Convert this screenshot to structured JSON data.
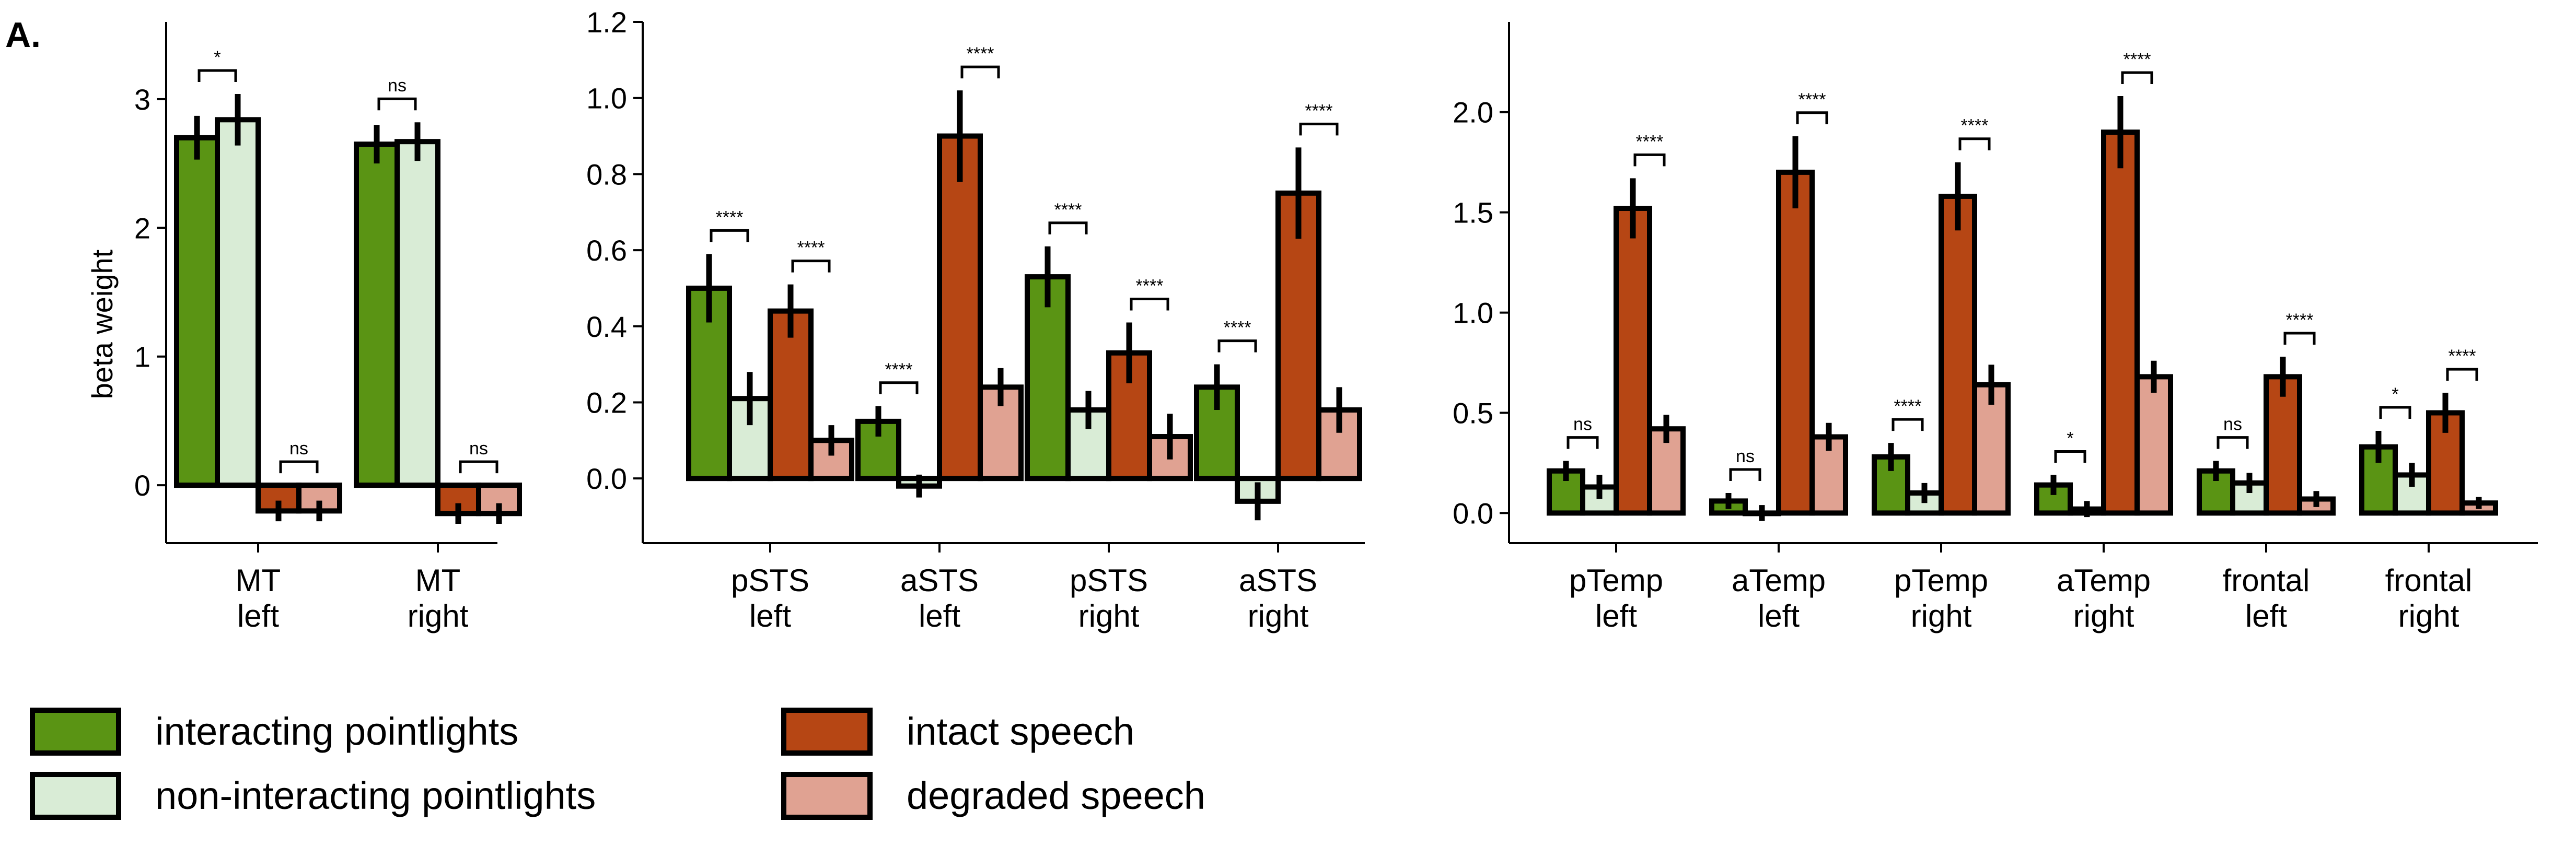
{
  "figure": {
    "panel_label": "A.",
    "colors": {
      "interacting pointlights": "#5a9414",
      "non-interacting pointlights": "#d9ecd6",
      "intact speech": "#b64614",
      "degraded speech": "#e0a292"
    }
  },
  "legend": [
    {
      "label": "interacting pointlights",
      "color": "#5a9414"
    },
    {
      "label": "non-interacting pointlights",
      "color": "#d9ecd6"
    },
    {
      "label": "intact speech",
      "color": "#b64614"
    },
    {
      "label": "degraded speech",
      "color": "#e0a292"
    }
  ],
  "chart_data": [
    {
      "type": "bar",
      "ylabel": "beta weight",
      "ylim": [
        -0.45,
        3.6
      ],
      "yticks": [
        0,
        1,
        2,
        3
      ],
      "ytick_labels": [
        "0",
        "1",
        "2",
        "3"
      ],
      "legend_position": "bottom",
      "groups": [
        {
          "label": [
            "MT",
            "left"
          ],
          "values": [
            2.7,
            2.84,
            -0.2,
            -0.2
          ],
          "errors": [
            0.17,
            0.2,
            0.08,
            0.08
          ],
          "sig": [
            {
              "bars": [
                0,
                1
              ],
              "label": "*"
            },
            {
              "bars": [
                2,
                3
              ],
              "label": "ns"
            }
          ]
        },
        {
          "label": [
            "MT",
            "right"
          ],
          "values": [
            2.65,
            2.67,
            -0.22,
            -0.22
          ],
          "errors": [
            0.15,
            0.15,
            0.08,
            0.08
          ],
          "sig": [
            {
              "bars": [
                0,
                1
              ],
              "label": "ns"
            },
            {
              "bars": [
                2,
                3
              ],
              "label": "ns"
            }
          ]
        }
      ]
    },
    {
      "type": "bar",
      "ylabel": "",
      "ylim": [
        -0.17,
        1.2
      ],
      "yticks": [
        0,
        0.2,
        0.4,
        0.6,
        0.8,
        1.0,
        1.2
      ],
      "ytick_labels": [
        "0.0",
        "0.2",
        "0.4",
        "0.6",
        "0.8",
        "1.0",
        "1.2"
      ],
      "groups": [
        {
          "label": [
            "pSTS",
            "left"
          ],
          "values": [
            0.5,
            0.21,
            0.44,
            0.1
          ],
          "errors": [
            0.09,
            0.07,
            0.07,
            0.04
          ],
          "sig": [
            {
              "bars": [
                0,
                1
              ],
              "label": "****"
            },
            {
              "bars": [
                2,
                3
              ],
              "label": "****"
            }
          ]
        },
        {
          "label": [
            "aSTS",
            "left"
          ],
          "values": [
            0.15,
            -0.02,
            0.9,
            0.24
          ],
          "errors": [
            0.04,
            0.03,
            0.12,
            0.05
          ],
          "sig": [
            {
              "bars": [
                0,
                1
              ],
              "label": "****"
            },
            {
              "bars": [
                2,
                3
              ],
              "label": "****"
            }
          ]
        },
        {
          "label": [
            "pSTS",
            "right"
          ],
          "values": [
            0.53,
            0.18,
            0.33,
            0.11
          ],
          "errors": [
            0.08,
            0.05,
            0.08,
            0.06
          ],
          "sig": [
            {
              "bars": [
                0,
                1
              ],
              "label": "****"
            },
            {
              "bars": [
                2,
                3
              ],
              "label": "****"
            }
          ]
        },
        {
          "label": [
            "aSTS",
            "right"
          ],
          "values": [
            0.24,
            -0.06,
            0.75,
            0.18
          ],
          "errors": [
            0.06,
            0.05,
            0.12,
            0.06
          ],
          "sig": [
            {
              "bars": [
                0,
                1
              ],
              "label": "****"
            },
            {
              "bars": [
                2,
                3
              ],
              "label": "****"
            }
          ]
        }
      ]
    },
    {
      "type": "bar",
      "ylabel": "",
      "ylim": [
        -0.15,
        2.45
      ],
      "yticks": [
        0,
        0.5,
        1.0,
        1.5,
        2.0
      ],
      "ytick_labels": [
        "0.0",
        "0.5",
        "1.0",
        "1.5",
        "2.0"
      ],
      "groups": [
        {
          "label": [
            "pTemp",
            "left"
          ],
          "values": [
            0.21,
            0.13,
            1.52,
            0.42
          ],
          "errors": [
            0.05,
            0.06,
            0.15,
            0.07
          ],
          "sig": [
            {
              "bars": [
                0,
                1
              ],
              "label": "ns"
            },
            {
              "bars": [
                2,
                3
              ],
              "label": "****"
            }
          ]
        },
        {
          "label": [
            "aTemp",
            "left"
          ],
          "values": [
            0.06,
            0.0,
            1.7,
            0.38
          ],
          "errors": [
            0.04,
            0.04,
            0.18,
            0.07
          ],
          "sig": [
            {
              "bars": [
                0,
                1
              ],
              "label": "ns"
            },
            {
              "bars": [
                2,
                3
              ],
              "label": "****"
            }
          ]
        },
        {
          "label": [
            "pTemp",
            "right"
          ],
          "values": [
            0.28,
            0.1,
            1.58,
            0.64
          ],
          "errors": [
            0.07,
            0.05,
            0.17,
            0.1
          ],
          "sig": [
            {
              "bars": [
                0,
                1
              ],
              "label": "****"
            },
            {
              "bars": [
                2,
                3
              ],
              "label": "****"
            }
          ]
        },
        {
          "label": [
            "aTemp",
            "right"
          ],
          "values": [
            0.14,
            0.02,
            1.9,
            0.68
          ],
          "errors": [
            0.05,
            0.04,
            0.18,
            0.08
          ],
          "sig": [
            {
              "bars": [
                0,
                1
              ],
              "label": "*"
            },
            {
              "bars": [
                2,
                3
              ],
              "label": "****"
            }
          ]
        },
        {
          "label": [
            "frontal",
            "left"
          ],
          "values": [
            0.21,
            0.15,
            0.68,
            0.07
          ],
          "errors": [
            0.05,
            0.05,
            0.1,
            0.04
          ],
          "sig": [
            {
              "bars": [
                0,
                1
              ],
              "label": "ns"
            },
            {
              "bars": [
                2,
                3
              ],
              "label": "****"
            }
          ]
        },
        {
          "label": [
            "frontal",
            "right"
          ],
          "values": [
            0.33,
            0.19,
            0.5,
            0.05
          ],
          "errors": [
            0.08,
            0.06,
            0.1,
            0.03
          ],
          "sig": [
            {
              "bars": [
                0,
                1
              ],
              "label": "*"
            },
            {
              "bars": [
                2,
                3
              ],
              "label": "****"
            }
          ]
        }
      ]
    }
  ]
}
